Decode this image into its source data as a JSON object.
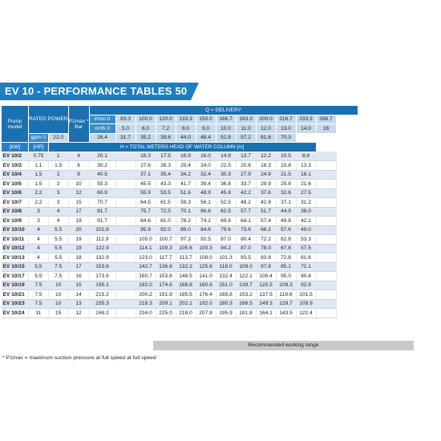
{
  "title": "EV 10 - PERFORMANCE TABLES 50 HZ",
  "header": {
    "pump_model": [
      "Pump",
      "model"
    ],
    "rated_power": "RATED POWER",
    "pimax": [
      "P1max *",
      "Bar"
    ],
    "kw": "[kW]",
    "hp": "[HP]",
    "delivery": "Q = DELIVERY",
    "head_label": "H = TOTAL METERS HEAD OF WATER COLUMN [m]"
  },
  "flow_units": [
    {
      "unit": "l/min 0",
      "values": [
        "83.3",
        "100.0",
        "120.0",
        "133.3",
        "150.0",
        "166.7",
        "183.3",
        "200.0",
        "216.7",
        "233.3",
        "266.7"
      ]
    },
    {
      "unit": "m³/h 0",
      "values": [
        "5.0",
        "6.0",
        "7.2",
        "8.0",
        "9.0",
        "10.0",
        "11.0",
        "12.0",
        "13.0",
        "14.0",
        "16"
      ]
    },
    {
      "unit": "gpm 0",
      "values": [
        "22.0",
        "26.4",
        "31.7",
        "35.2",
        "39.6",
        "44.0",
        "48.4",
        "52.8",
        "57.2",
        "61.6",
        "70.3"
      ]
    }
  ],
  "rows": [
    {
      "model": "EV 10/2",
      "kw": "0.75",
      "hp": "1",
      "bar": "4",
      "h0": "20.1",
      "heads": [
        "",
        "18.3",
        "17.5",
        "16.9",
        "16.0",
        "14.9",
        "13.7",
        "12.2",
        "10.5",
        "8.8",
        ""
      ]
    },
    {
      "model": "EV 10/3",
      "kw": "1.1",
      "hp": "1.5",
      "bar": "6",
      "h0": "30.2",
      "heads": [
        "",
        "27.6",
        "26.3",
        "25.4",
        "24.0",
        "22.5",
        "20.6",
        "18.3",
        "15.8",
        "13.3",
        ""
      ]
    },
    {
      "model": "EV 10/4",
      "kw": "1.5",
      "hp": "2",
      "bar": "8",
      "h0": "40.5",
      "heads": [
        "",
        "37.1",
        "35.4",
        "34.2",
        "32.4",
        "30.3",
        "27.9",
        "24.9",
        "21.5",
        "18.1",
        ""
      ]
    },
    {
      "model": "EV 10/5",
      "kw": "1.5",
      "hp": "2",
      "bar": "10",
      "h0": "50.3",
      "heads": [
        "",
        "45.5",
        "43.3",
        "41.7",
        "39.4",
        "36.8",
        "33.7",
        "29.9",
        "25.8",
        "21.6",
        ""
      ]
    },
    {
      "model": "EV 10/6",
      "kw": "2.2",
      "hp": "3",
      "bar": "12",
      "h0": "60.9",
      "heads": [
        "",
        "55.9",
        "53.5",
        "51.6",
        "48.9",
        "45.8",
        "42.2",
        "37.6",
        "32.6",
        "27.5",
        ""
      ]
    },
    {
      "model": "EV 10/7",
      "kw": "2.2",
      "hp": "3",
      "bar": "15",
      "h0": "70.7",
      "heads": [
        "",
        "64.5",
        "61.5",
        "59.3",
        "56.1",
        "52.5",
        "48.2",
        "42.9",
        "37.1",
        "31.2",
        ""
      ]
    },
    {
      "model": "EV 10/8",
      "kw": "3",
      "hp": "4",
      "bar": "17",
      "h0": "81.7",
      "heads": [
        "",
        "75.7",
        "72.5",
        "70.1",
        "66.6",
        "62.5",
        "57.7",
        "51.7",
        "44.9",
        "38.0",
        ""
      ]
    },
    {
      "model": "EV 10/9",
      "kw": "3",
      "hp": "4",
      "bar": "19",
      "h0": "91.7",
      "heads": [
        "",
        "84.6",
        "81.0",
        "78.2",
        "74.2",
        "69.6",
        "64.1",
        "57.4",
        "49.8",
        "42.1",
        ""
      ]
    },
    {
      "model": "EV 10/10",
      "kw": "4",
      "hp": "5.5",
      "bar": "20",
      "h0": "102.8",
      "heads": [
        "",
        "95.9",
        "92.0",
        "89.0",
        "84.6",
        "79.6",
        "73.6",
        "66.2",
        "57.6",
        "49.0",
        ""
      ]
    },
    {
      "model": "EV 10/11",
      "kw": "4",
      "hp": "5.5",
      "bar": "19",
      "h0": "112.9",
      "heads": [
        "",
        "105.0",
        "100.7",
        "97.3",
        "92.5",
        "87.0",
        "80.4",
        "72.2",
        "62.8",
        "53.3",
        ""
      ]
    },
    {
      "model": "EV 10/12",
      "kw": "4",
      "hp": "5.5",
      "bar": "19",
      "h0": "122.9",
      "heads": [
        "",
        "114.1",
        "109.3",
        "105.6",
        "100.3",
        "94.2",
        "87.0",
        "78.0",
        "67.8",
        "57.5",
        ""
      ]
    },
    {
      "model": "EV 10/13",
      "kw": "4",
      "hp": "5.5",
      "bar": "18",
      "h0": "132.9",
      "heads": [
        "",
        "123.0",
        "117.7",
        "113.7",
        "108.0",
        "101.3",
        "93.5",
        "83.8",
        "72.8",
        "61.6",
        ""
      ]
    },
    {
      "model": "EV 10/15",
      "kw": "5.5",
      "hp": "7.5",
      "bar": "17",
      "h0": "153.6",
      "heads": [
        "",
        "142.7",
        "136.8",
        "132.2",
        "125.6",
        "118.0",
        "109.0",
        "97.8",
        "85.1",
        "72.1",
        ""
      ]
    },
    {
      "model": "EV 10/17",
      "kw": "5.5",
      "hp": "7.5",
      "bar": "16",
      "h0": "173.6",
      "heads": [
        "",
        "160.7",
        "153.8",
        "148.5",
        "141.0",
        "132.4",
        "122.1",
        "109.4",
        "95.0",
        "80.4",
        ""
      ]
    },
    {
      "model": "EV 10/19",
      "kw": "7.5",
      "hp": "10",
      "bar": "15",
      "h0": "195.1",
      "heads": [
        "",
        "182.0",
        "174.6",
        "168.8",
        "160.6",
        "151.0",
        "139.7",
        "125.5",
        "109.3",
        "92.9",
        ""
      ]
    },
    {
      "model": "EV 10/21",
      "kw": "7.5",
      "hp": "10",
      "bar": "14",
      "h0": "215.2",
      "heads": [
        "",
        "200.2",
        "191.9",
        "185.5",
        "176.4",
        "165.8",
        "153.2",
        "137.5",
        "119.6",
        "101.5",
        ""
      ]
    },
    {
      "model": "EV 10/23",
      "kw": "7.5",
      "hp": "10",
      "bar": "13",
      "h0": "235.3",
      "heads": [
        "",
        "218.3",
        "209.1",
        "202.1",
        "192.0",
        "180.3",
        "166.5",
        "149.3",
        "129.7",
        "109.9",
        ""
      ]
    },
    {
      "model": "EV 10/24",
      "kw": "11",
      "hp": "15",
      "bar": "12",
      "h0": "248.2",
      "heads": [
        "",
        "234.0",
        "225.0",
        "218.0",
        "207.8",
        "195.9",
        "181.8",
        "164.1",
        "143.5",
        "122.4",
        ""
      ]
    }
  ],
  "recommended_label": "Recommended working range",
  "footnote": "* P1max = maximum suction pressure at full speed at full speed",
  "colors": {
    "title_blue": "#1f7ec2",
    "header_blue": "#1b70b0",
    "flow_row": "#c9d9ec",
    "zebra": "#dfe7f1",
    "recommended_bar": "#c9c9c9"
  }
}
